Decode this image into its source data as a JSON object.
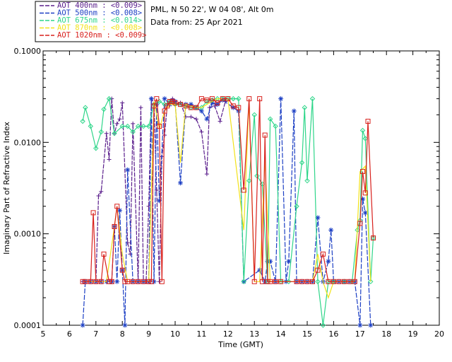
{
  "header": {
    "site_line": "PML, N 50 22', W 04 08', Alt 0m",
    "date_line": "Data from: 25 Apr 2021"
  },
  "chart_data": {
    "type": "line",
    "xlabel": "Time (GMT)",
    "ylabel": "Imaginary Part of Refractive Index",
    "xlim": [
      5,
      20
    ],
    "ylim": [
      0.0001,
      0.1
    ],
    "yscale": "log",
    "x_ticks": [
      5,
      6,
      7,
      8,
      9,
      10,
      11,
      12,
      13,
      14,
      15,
      16,
      17,
      18,
      19,
      20
    ],
    "x_tick_labels": [
      "5",
      "6",
      "7",
      "8",
      "9",
      "10",
      "11",
      "12",
      "13",
      "14",
      "15",
      "16",
      "17",
      "18",
      "19",
      "20"
    ],
    "y_ticks": [
      0.0001,
      0.001,
      0.01,
      0.1
    ],
    "y_tick_labels": [
      "0.0001",
      "0.0010",
      "0.0100",
      "0.1000"
    ],
    "grid": false,
    "legend_position": "top-left",
    "series": [
      {
        "name": "AOT  400nm : <0.009>",
        "color": "#5a1e8c",
        "marker": "plus",
        "points": [
          [
            6.5,
            0.0003
          ],
          [
            6.6,
            0.0003
          ],
          [
            6.8,
            0.0003
          ],
          [
            7.0,
            0.0003
          ],
          [
            7.1,
            0.0026
          ],
          [
            7.2,
            0.0029
          ],
          [
            7.4,
            0.0125
          ],
          [
            7.5,
            0.0065
          ],
          [
            7.6,
            0.03
          ],
          [
            7.7,
            0.0125
          ],
          [
            7.8,
            0.016
          ],
          [
            7.9,
            0.018
          ],
          [
            8.0,
            0.027
          ],
          [
            8.2,
            0.0008
          ],
          [
            8.3,
            0.0006
          ],
          [
            8.4,
            0.016
          ],
          [
            8.6,
            0.0003
          ],
          [
            8.7,
            0.024
          ],
          [
            8.8,
            0.0003
          ],
          [
            8.9,
            0.0003
          ],
          [
            9.0,
            0.002
          ],
          [
            9.1,
            0.03
          ],
          [
            9.2,
            0.026
          ],
          [
            9.3,
            0.003
          ],
          [
            9.4,
            0.0003
          ],
          [
            9.5,
            0.007
          ],
          [
            9.6,
            0.012
          ],
          [
            9.7,
            0.025
          ],
          [
            9.8,
            0.028
          ],
          [
            9.9,
            0.03
          ],
          [
            10.0,
            0.026
          ],
          [
            10.2,
            0.027
          ],
          [
            10.4,
            0.019
          ],
          [
            10.6,
            0.019
          ],
          [
            10.8,
            0.018
          ],
          [
            11.0,
            0.013
          ],
          [
            11.2,
            0.0045
          ],
          [
            11.3,
            0.024
          ],
          [
            11.5,
            0.025
          ],
          [
            11.7,
            0.017
          ],
          [
            11.9,
            0.028
          ]
        ]
      },
      {
        "name": "AOT  500nm : <0.008>",
        "color": "#1c3fc4",
        "marker": "asterisk",
        "points": [
          [
            6.5,
            0.0001
          ],
          [
            6.6,
            0.0003
          ],
          [
            6.8,
            0.0003
          ],
          [
            7.0,
            0.0003
          ],
          [
            7.2,
            0.0003
          ],
          [
            7.4,
            0.0003
          ],
          [
            7.6,
            0.0003
          ],
          [
            7.7,
            0.0012
          ],
          [
            7.8,
            0.0003
          ],
          [
            7.9,
            0.0018
          ],
          [
            8.0,
            0.0004
          ],
          [
            8.1,
            0.0001
          ],
          [
            8.2,
            0.005
          ],
          [
            8.4,
            0.0003
          ],
          [
            8.6,
            0.0003
          ],
          [
            8.8,
            0.0003
          ],
          [
            9.0,
            0.0003
          ],
          [
            9.1,
            0.03
          ],
          [
            9.2,
            0.0003
          ],
          [
            9.3,
            0.026
          ],
          [
            9.4,
            0.0023
          ],
          [
            9.6,
            0.03
          ],
          [
            9.8,
            0.026
          ],
          [
            10.0,
            0.028
          ],
          [
            10.2,
            0.0036
          ],
          [
            10.4,
            0.026
          ],
          [
            10.6,
            0.026
          ],
          [
            10.8,
            0.024
          ],
          [
            11.0,
            0.022
          ],
          [
            11.2,
            0.018
          ],
          [
            11.4,
            0.027
          ],
          [
            11.6,
            0.026
          ],
          [
            11.8,
            0.029
          ],
          [
            12.2,
            0.024
          ],
          [
            12.4,
            0.022
          ],
          [
            12.6,
            0.0003
          ],
          [
            13.2,
            0.0004
          ],
          [
            13.4,
            0.0003
          ],
          [
            13.5,
            0.0005
          ],
          [
            13.6,
            0.0005
          ],
          [
            13.8,
            0.0003
          ],
          [
            14.0,
            0.03
          ],
          [
            14.2,
            0.0003
          ],
          [
            14.3,
            0.0005
          ],
          [
            14.5,
            0.022
          ],
          [
            14.6,
            0.0003
          ],
          [
            14.8,
            0.0003
          ],
          [
            15.0,
            0.0003
          ],
          [
            15.2,
            0.0003
          ],
          [
            15.4,
            0.0015
          ],
          [
            15.6,
            0.0003
          ],
          [
            15.8,
            0.0005
          ],
          [
            15.9,
            0.0011
          ],
          [
            16.0,
            0.0003
          ],
          [
            16.2,
            0.0003
          ],
          [
            16.4,
            0.0003
          ],
          [
            16.6,
            0.0003
          ],
          [
            16.8,
            0.0003
          ],
          [
            17.0,
            0.0001
          ],
          [
            17.1,
            0.0024
          ],
          [
            17.2,
            0.0017
          ],
          [
            17.4,
            0.0001
          ]
        ]
      },
      {
        "name": "AOT  675nm : <0.014>",
        "color": "#2fd68a",
        "marker": "diamond",
        "points": [
          [
            6.5,
            0.017
          ],
          [
            6.6,
            0.024
          ],
          [
            6.8,
            0.015
          ],
          [
            7.0,
            0.0086
          ],
          [
            7.2,
            0.013
          ],
          [
            7.3,
            0.023
          ],
          [
            7.5,
            0.03
          ],
          [
            7.7,
            0.0125
          ],
          [
            8.0,
            0.015
          ],
          [
            8.2,
            0.015
          ],
          [
            8.4,
            0.013
          ],
          [
            8.6,
            0.015
          ],
          [
            8.8,
            0.015
          ],
          [
            9.0,
            0.015
          ],
          [
            9.2,
            0.026
          ],
          [
            9.4,
            0.028
          ],
          [
            9.6,
            0.026
          ],
          [
            9.8,
            0.028
          ],
          [
            10.0,
            0.026
          ],
          [
            10.2,
            0.026
          ],
          [
            10.4,
            0.025
          ],
          [
            10.6,
            0.024
          ],
          [
            10.8,
            0.024
          ],
          [
            11.0,
            0.024
          ],
          [
            11.2,
            0.028
          ],
          [
            11.4,
            0.029
          ],
          [
            11.6,
            0.03
          ],
          [
            11.8,
            0.03
          ],
          [
            12.0,
            0.03
          ],
          [
            12.2,
            0.03
          ],
          [
            12.4,
            0.03
          ],
          [
            12.6,
            0.0003
          ],
          [
            12.8,
            0.0038
          ],
          [
            13.0,
            0.02
          ],
          [
            13.1,
            0.0043
          ],
          [
            13.3,
            0.0035
          ],
          [
            13.5,
            0.0003
          ],
          [
            13.6,
            0.018
          ],
          [
            13.8,
            0.015
          ],
          [
            14.0,
            0.0003
          ],
          [
            14.3,
            0.0003
          ],
          [
            14.6,
            0.002
          ],
          [
            14.8,
            0.006
          ],
          [
            14.9,
            0.024
          ],
          [
            15.0,
            0.0038
          ],
          [
            15.2,
            0.03
          ],
          [
            15.4,
            0.0003
          ],
          [
            15.6,
            0.0001
          ],
          [
            15.8,
            0.0003
          ],
          [
            16.0,
            0.0003
          ],
          [
            16.4,
            0.0003
          ],
          [
            16.7,
            0.0003
          ],
          [
            16.9,
            0.0011
          ],
          [
            17.0,
            0.0014
          ],
          [
            17.1,
            0.0135
          ],
          [
            17.2,
            0.011
          ],
          [
            17.4,
            0.0003
          ],
          [
            17.5,
            0.0009
          ]
        ]
      },
      {
        "name": "AOT  870nm : <0.008>",
        "color": "#f2e21a",
        "marker": "none",
        "points": [
          [
            6.5,
            0.0003
          ],
          [
            6.8,
            0.0003
          ],
          [
            7.0,
            0.0003
          ],
          [
            7.2,
            0.0003
          ],
          [
            7.4,
            0.0003
          ],
          [
            7.7,
            0.0012
          ],
          [
            7.8,
            0.002
          ],
          [
            8.0,
            0.0006
          ],
          [
            8.2,
            0.0003
          ],
          [
            8.6,
            0.0003
          ],
          [
            8.8,
            0.0003
          ],
          [
            9.0,
            0.0003
          ],
          [
            9.2,
            0.028
          ],
          [
            9.4,
            0.014
          ],
          [
            9.6,
            0.022
          ],
          [
            9.8,
            0.026
          ],
          [
            10.0,
            0.026
          ],
          [
            10.2,
            0.006
          ],
          [
            10.4,
            0.026
          ],
          [
            10.6,
            0.025
          ],
          [
            10.8,
            0.024
          ],
          [
            11.0,
            0.024
          ],
          [
            11.2,
            0.026
          ],
          [
            11.4,
            0.028
          ],
          [
            11.6,
            0.03
          ],
          [
            11.8,
            0.03
          ],
          [
            12.0,
            0.03
          ],
          [
            12.6,
            0.0011
          ],
          [
            12.8,
            0.03
          ],
          [
            13.0,
            0.0003
          ],
          [
            13.2,
            0.0003
          ],
          [
            13.4,
            0.0065
          ],
          [
            13.6,
            0.0003
          ],
          [
            13.8,
            0.0003
          ],
          [
            14.0,
            0.0003
          ],
          [
            14.6,
            0.0003
          ],
          [
            14.8,
            0.0003
          ],
          [
            15.0,
            0.0003
          ],
          [
            15.2,
            0.0003
          ],
          [
            15.4,
            0.0006
          ],
          [
            15.6,
            0.0003
          ],
          [
            15.8,
            0.0002
          ],
          [
            16.0,
            0.0003
          ],
          [
            16.4,
            0.0003
          ],
          [
            16.6,
            0.0003
          ],
          [
            16.8,
            0.0003
          ],
          [
            17.0,
            0.0048
          ],
          [
            17.2,
            0.0055
          ],
          [
            17.4,
            0.0003
          ]
        ]
      },
      {
        "name": "AOT 1020nm : <0.009>",
        "color": "#d8201c",
        "marker": "square",
        "points": [
          [
            6.5,
            0.0003
          ],
          [
            6.6,
            0.0003
          ],
          [
            6.8,
            0.0003
          ],
          [
            6.9,
            0.0017
          ],
          [
            7.0,
            0.0003
          ],
          [
            7.2,
            0.0003
          ],
          [
            7.3,
            0.0006
          ],
          [
            7.5,
            0.0003
          ],
          [
            7.6,
            0.0003
          ],
          [
            7.7,
            0.0012
          ],
          [
            7.8,
            0.002
          ],
          [
            8.0,
            0.0004
          ],
          [
            8.1,
            0.0003
          ],
          [
            8.2,
            0.0003
          ],
          [
            8.4,
            0.0003
          ],
          [
            8.6,
            0.0003
          ],
          [
            8.8,
            0.0003
          ],
          [
            9.0,
            0.0003
          ],
          [
            9.1,
            0.0003
          ],
          [
            9.2,
            0.025
          ],
          [
            9.3,
            0.03
          ],
          [
            9.4,
            0.015
          ],
          [
            9.5,
            0.0003
          ],
          [
            9.6,
            0.022
          ],
          [
            9.7,
            0.025
          ],
          [
            9.8,
            0.028
          ],
          [
            9.9,
            0.028
          ],
          [
            10.0,
            0.027
          ],
          [
            10.2,
            0.026
          ],
          [
            10.4,
            0.025
          ],
          [
            10.6,
            0.024
          ],
          [
            10.8,
            0.024
          ],
          [
            11.0,
            0.03
          ],
          [
            11.2,
            0.029
          ],
          [
            11.4,
            0.03
          ],
          [
            11.6,
            0.027
          ],
          [
            11.8,
            0.03
          ],
          [
            12.0,
            0.03
          ],
          [
            12.2,
            0.025
          ],
          [
            12.4,
            0.024
          ],
          [
            12.6,
            0.003
          ],
          [
            12.8,
            0.03
          ],
          [
            13.0,
            0.0003
          ],
          [
            13.2,
            0.03
          ],
          [
            13.3,
            0.0003
          ],
          [
            13.4,
            0.012
          ],
          [
            13.5,
            0.0003
          ],
          [
            13.6,
            0.0003
          ],
          [
            13.8,
            0.0003
          ],
          [
            14.0,
            0.0003
          ],
          [
            14.6,
            0.0003
          ],
          [
            14.8,
            0.0003
          ],
          [
            15.0,
            0.0003
          ],
          [
            15.2,
            0.0003
          ],
          [
            15.4,
            0.0004
          ],
          [
            15.6,
            0.0006
          ],
          [
            15.8,
            0.0003
          ],
          [
            16.0,
            0.0003
          ],
          [
            16.2,
            0.0003
          ],
          [
            16.4,
            0.0003
          ],
          [
            16.6,
            0.0003
          ],
          [
            16.8,
            0.0003
          ],
          [
            17.0,
            0.0013
          ],
          [
            17.1,
            0.0048
          ],
          [
            17.2,
            0.0028
          ],
          [
            17.3,
            0.017
          ],
          [
            17.5,
            0.0009
          ]
        ]
      }
    ]
  }
}
